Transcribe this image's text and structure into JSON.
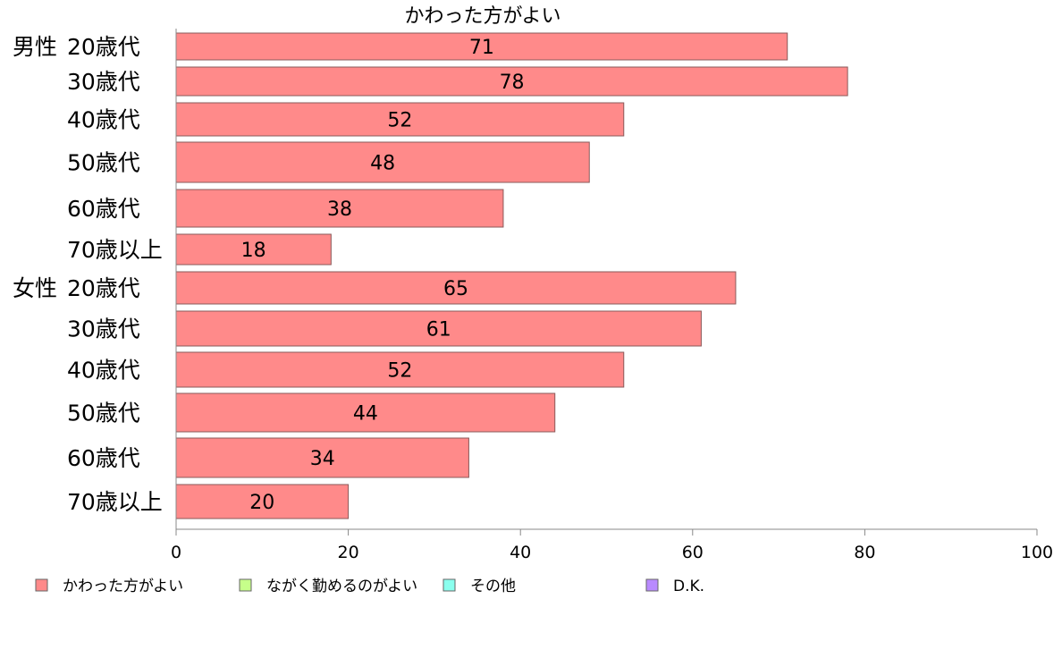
{
  "chart_data": {
    "type": "bar",
    "orientation": "horizontal",
    "title": "かわった方がよい",
    "groups": [
      {
        "label": "男性",
        "start_index": 0
      },
      {
        "label": "女性",
        "start_index": 6
      }
    ],
    "categories": [
      "20歳代",
      "30歳代",
      "40歳代",
      "50歳代",
      "60歳代",
      "70歳以上",
      "20歳代",
      "30歳代",
      "40歳代",
      "50歳代",
      "60歳代",
      "70歳以上"
    ],
    "series": [
      {
        "name": "かわった方がよい",
        "color": "#ff8a8a",
        "values": [
          71,
          78,
          52,
          48,
          38,
          18,
          65,
          61,
          52,
          44,
          34,
          20
        ]
      }
    ],
    "data_labels": [
      "71",
      "78",
      "52",
      "48",
      "38",
      "18",
      "65",
      "61",
      "52",
      "44",
      "34",
      "20"
    ],
    "xlim": [
      0,
      100
    ],
    "xticks": [
      0,
      20,
      40,
      60,
      80,
      100
    ],
    "xtick_labels": [
      "0",
      "20",
      "40",
      "60",
      "80",
      "100"
    ],
    "grid": false,
    "legend": {
      "placement": "bottom",
      "items": [
        {
          "label": "かわった方がよい",
          "color": "#ff8a8a"
        },
        {
          "label": "ながく勤めるのがよい",
          "color": "#c6ff8a"
        },
        {
          "label": "その他",
          "color": "#8affee"
        },
        {
          "label": "D.K.",
          "color": "#b98aff"
        }
      ]
    }
  }
}
